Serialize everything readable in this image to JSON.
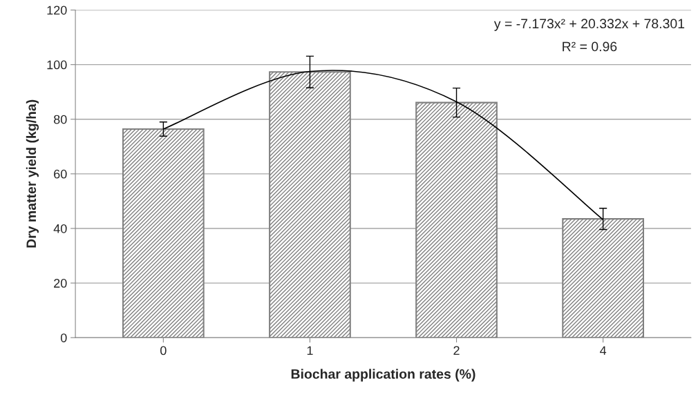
{
  "chart_data": {
    "type": "bar",
    "xlabel": "Biochar application rates (%)",
    "ylabel": "Dry matter yield (kg/ha)",
    "categories": [
      "0",
      "1",
      "2",
      "4"
    ],
    "series": [
      {
        "color": "#808080",
        "values": [
          76.4,
          97.3,
          86.1,
          43.5
        ],
        "errors": [
          2.6,
          5.8,
          5.3,
          3.9
        ]
      },
      {
        "type": "line",
        "color": "#000000",
        "values": [
          76.4,
          97.5,
          86.4,
          43.2
        ]
      }
    ],
    "ylim": [
      0,
      120
    ],
    "yticks": [
      0,
      20,
      40,
      60,
      80,
      100,
      120
    ],
    "grid": "y",
    "annotations": [
      "y = -7.173x² + 20.332x + 78.301",
      "R² = 0.96"
    ]
  }
}
